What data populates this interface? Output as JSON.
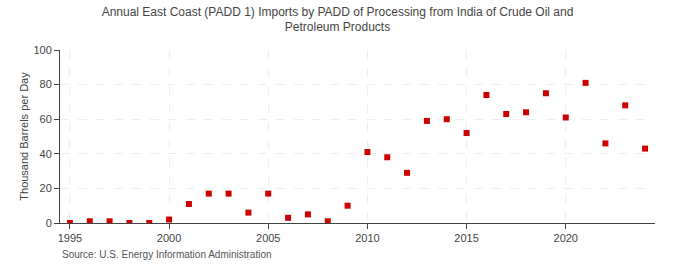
{
  "chart_data": {
    "type": "scatter",
    "title": "Annual East Coast (PADD 1) Imports by PADD of Processing from India of Crude Oil and\nPetroleum Products",
    "ylabel": "Thousand Barrels per Day",
    "source": "Source: U.S. Energy Information Administration",
    "x": [
      1995,
      1996,
      1997,
      1998,
      1999,
      2000,
      2001,
      2002,
      2003,
      2004,
      2005,
      2006,
      2007,
      2008,
      2009,
      2010,
      2011,
      2012,
      2013,
      2014,
      2015,
      2016,
      2017,
      2018,
      2019,
      2020,
      2021,
      2022,
      2023,
      2024
    ],
    "values": [
      0,
      1,
      1,
      0,
      0,
      2,
      11,
      17,
      17,
      6,
      17,
      3,
      5,
      1,
      10,
      41,
      38,
      29,
      59,
      60,
      52,
      74,
      63,
      64,
      75,
      61,
      81,
      46,
      68,
      43
    ],
    "color": "#cc0000",
    "marker": "square",
    "xlim": [
      1994.5,
      2024.5
    ],
    "ylim": [
      0,
      100
    ],
    "xticks": [
      1995,
      2000,
      2005,
      2010,
      2015,
      2020
    ],
    "yticks": [
      0,
      20,
      40,
      60,
      80,
      100
    ],
    "grid": true
  }
}
